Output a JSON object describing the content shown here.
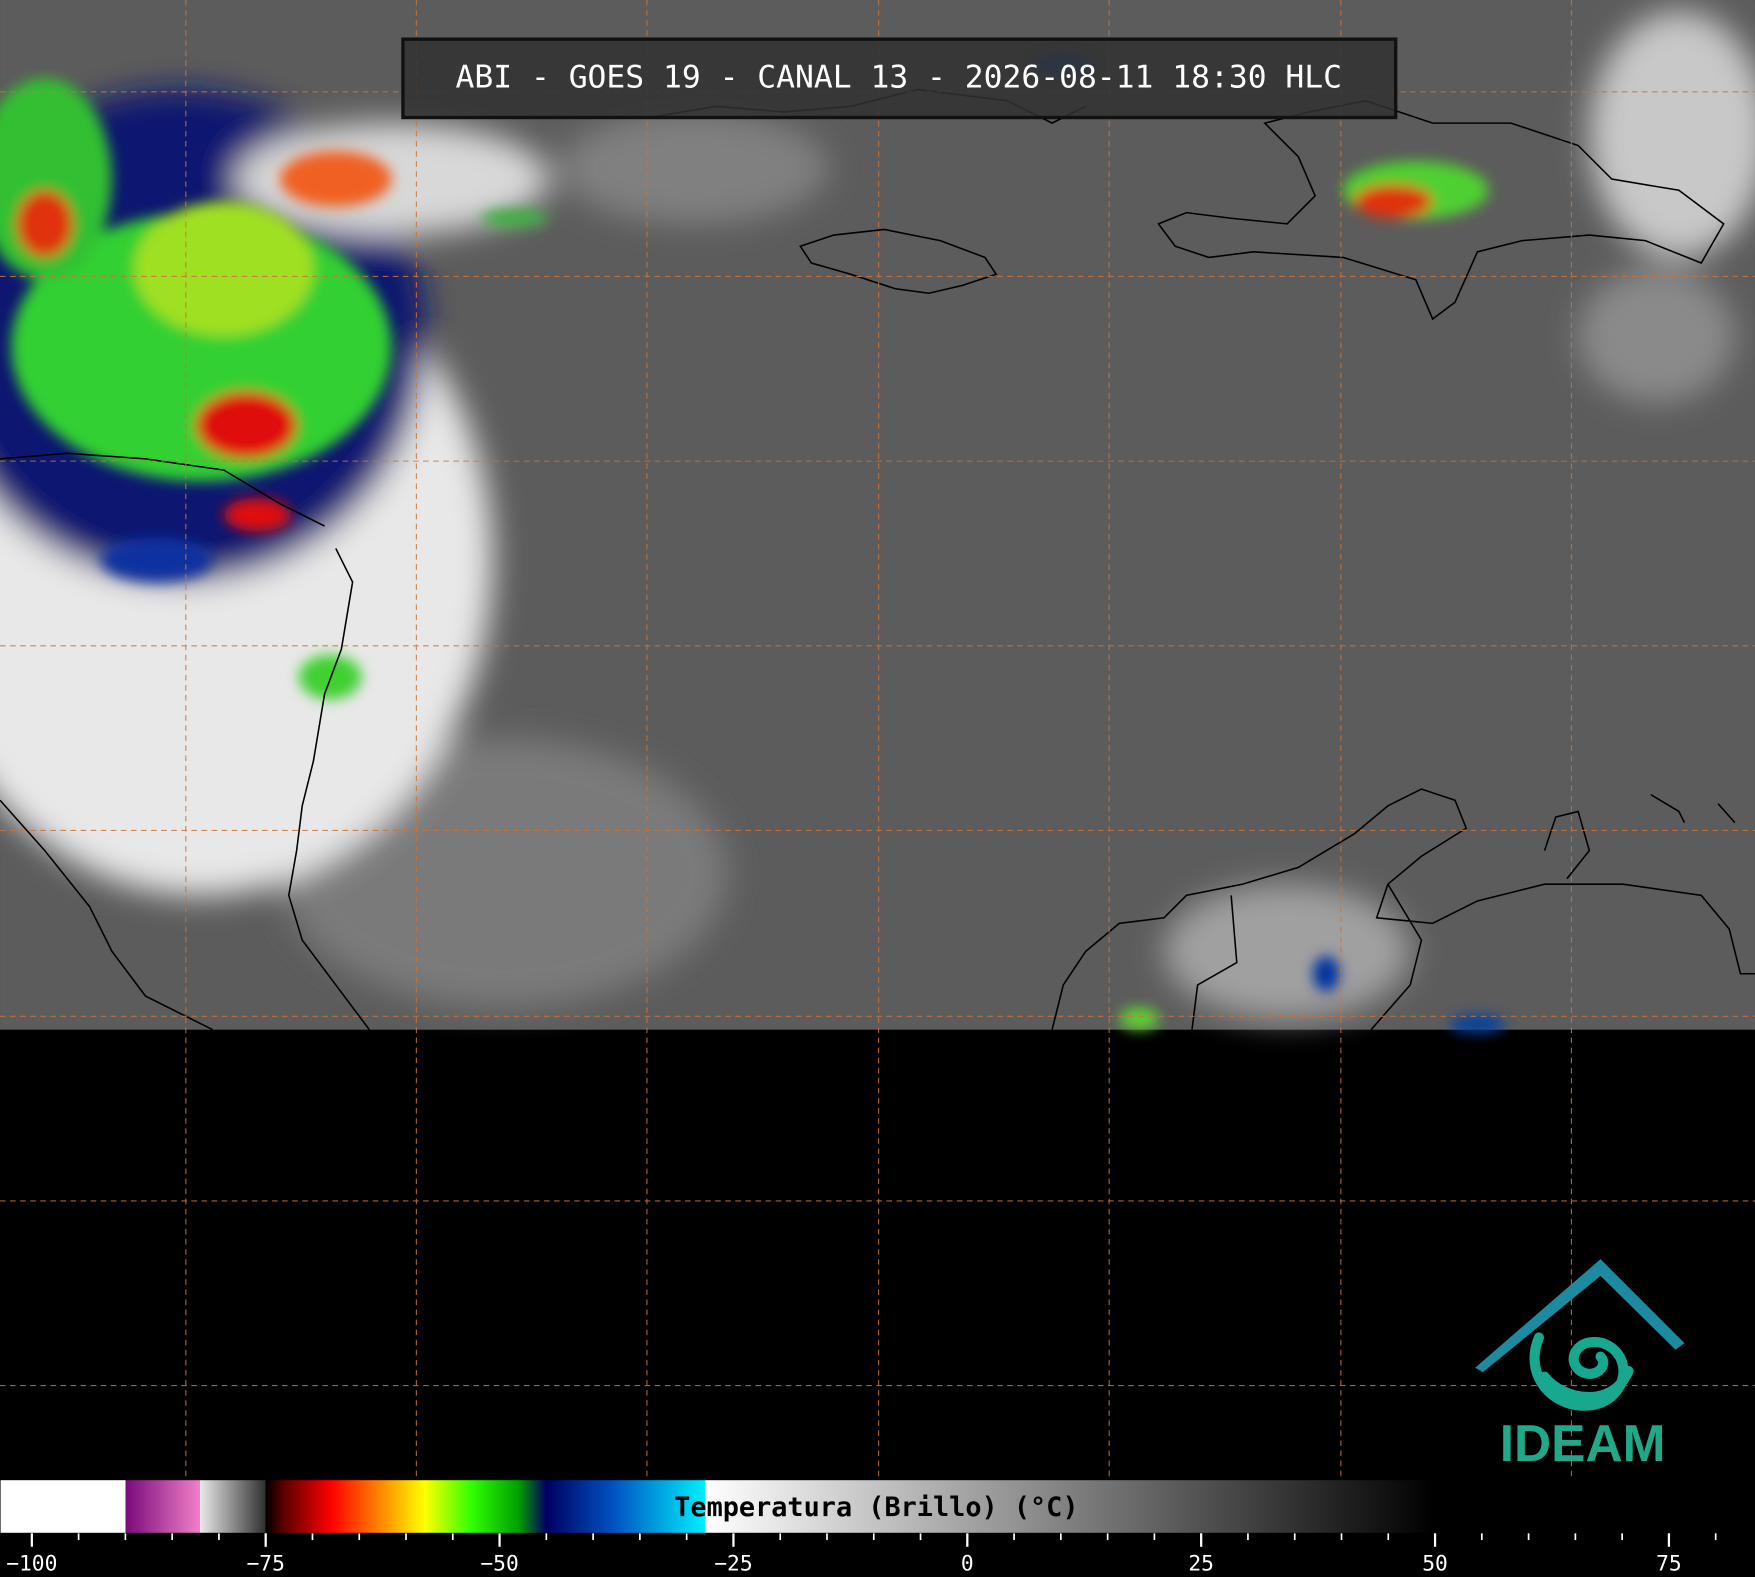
{
  "title": "ABI - GOES 19 - CANAL 13 - 2026-08-11 18:30 HLC",
  "logo_text": "IDEAM",
  "colorbar": {
    "label": "Temperatura (Brillo) (°C)",
    "xlim": [
      -103.4,
      84.2
    ],
    "xticks": [
      {
        "value": -100,
        "label": "−100"
      },
      {
        "value": -75,
        "label": "−75"
      },
      {
        "value": -50,
        "label": "−50"
      },
      {
        "value": -25,
        "label": "−25"
      },
      0,
      25,
      50,
      75
    ],
    "minor_xticks": [
      -100,
      -95,
      -90,
      -85,
      -80,
      -75,
      -70,
      -65,
      -60,
      -55,
      -50,
      -45,
      -40,
      -35,
      -30,
      -25,
      -20,
      -15,
      -10,
      -5,
      0,
      5,
      10,
      15,
      20,
      25,
      30,
      35,
      40,
      45,
      50,
      55,
      60,
      65,
      70,
      75,
      80
    ],
    "colormap": [
      {
        "value": -103.4,
        "color": "#ffffff"
      },
      {
        "value": -90,
        "color": "#ffffff"
      },
      {
        "value": -90,
        "color": "#7a0a7a"
      },
      {
        "value": -82,
        "color": "#f080c8"
      },
      {
        "value": -82,
        "color": "#e8e8e8"
      },
      {
        "value": -75,
        "color": "#303030"
      },
      {
        "value": -75,
        "color": "#000000"
      },
      {
        "value": -73,
        "color": "#600000"
      },
      {
        "value": -68,
        "color": "#ff0000"
      },
      {
        "value": -63,
        "color": "#ff8000"
      },
      {
        "value": -58,
        "color": "#ffff00"
      },
      {
        "value": -53,
        "color": "#30ff00"
      },
      {
        "value": -48,
        "color": "#00a000"
      },
      {
        "value": -45,
        "color": "#000060"
      },
      {
        "value": -38,
        "color": "#0050c0"
      },
      {
        "value": -28,
        "color": "#00f0ff"
      },
      {
        "value": -28,
        "color": "#ffffff"
      },
      {
        "value": 50,
        "color": "#000000"
      }
    ]
  }
}
